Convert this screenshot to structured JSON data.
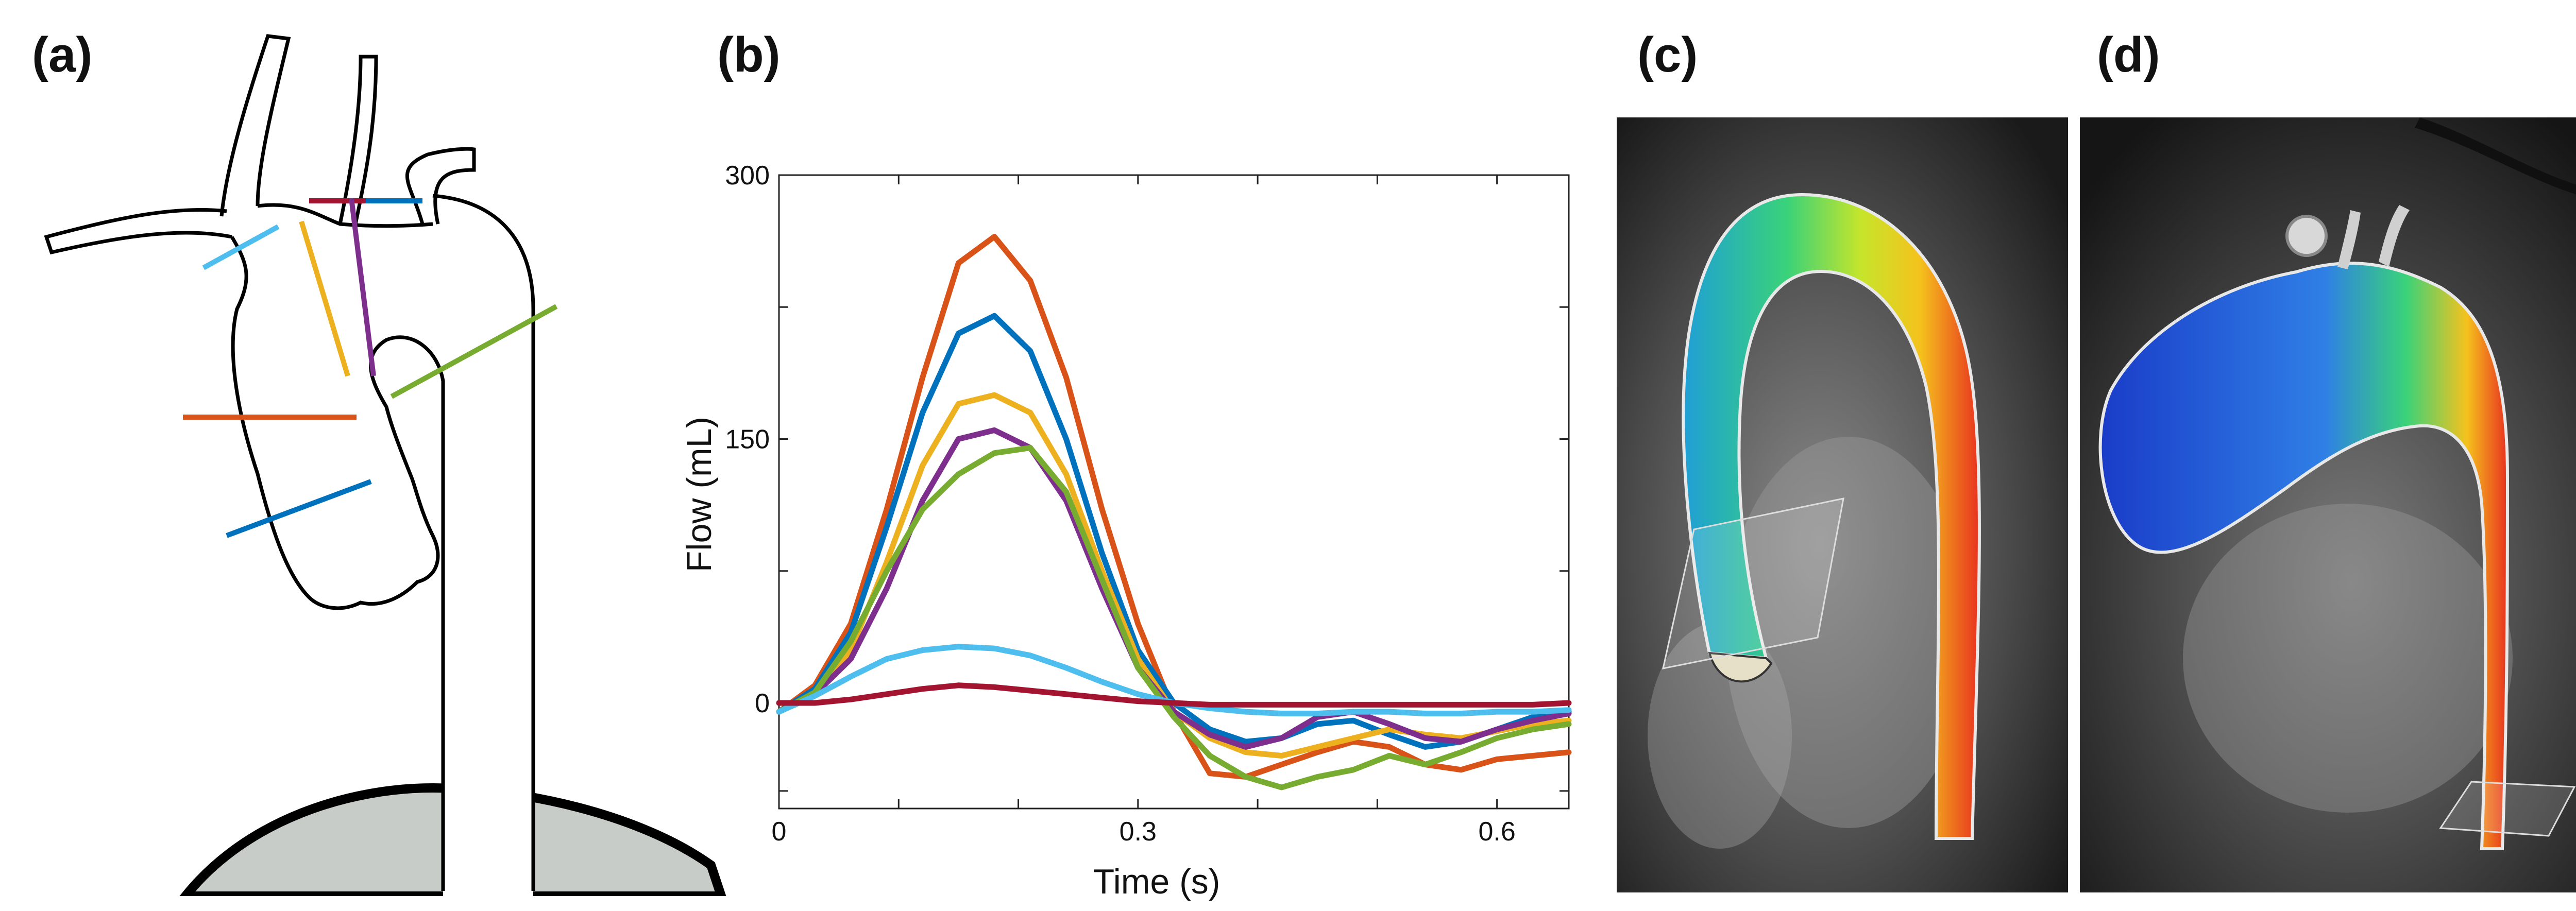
{
  "panels": {
    "a": {
      "label": "(a)"
    },
    "b": {
      "label": "(b)"
    },
    "c": {
      "label": "(c)"
    },
    "d": {
      "label": "(d)"
    }
  },
  "colors": {
    "orange": "#d95319",
    "blue": "#0072bd",
    "yellow": "#edb120",
    "purple": "#7e2f8e",
    "green": "#77ac30",
    "lightblue": "#4dbeee",
    "darkred": "#a2142f"
  },
  "chart_data": {
    "type": "line",
    "title": "",
    "xlabel": "Time (s)",
    "ylabel": "Flow (mL)",
    "xlim": [
      0,
      0.66
    ],
    "ylim": [
      -60,
      300
    ],
    "xticks": [
      0,
      0.3,
      0.6
    ],
    "xtick_labels": [
      "0",
      "0.3",
      "0.6"
    ],
    "yticks": [
      0,
      150,
      300
    ],
    "ytick_labels": [
      "0",
      "150",
      "300"
    ],
    "grid": false,
    "series": [
      {
        "color": "orange",
        "x": [
          0,
          0.03,
          0.06,
          0.09,
          0.12,
          0.15,
          0.18,
          0.21,
          0.24,
          0.27,
          0.3,
          0.33,
          0.36,
          0.39,
          0.42,
          0.45,
          0.48,
          0.51,
          0.54,
          0.57,
          0.6,
          0.63,
          0.66
        ],
        "y": [
          -5,
          10,
          45,
          110,
          185,
          250,
          265,
          240,
          185,
          110,
          45,
          -5,
          -40,
          -42,
          -35,
          -28,
          -22,
          -25,
          -35,
          -38,
          -32,
          -30,
          -28
        ]
      },
      {
        "color": "blue",
        "x": [
          0,
          0.03,
          0.06,
          0.09,
          0.12,
          0.15,
          0.18,
          0.21,
          0.24,
          0.27,
          0.3,
          0.33,
          0.36,
          0.39,
          0.42,
          0.45,
          0.48,
          0.51,
          0.54,
          0.57,
          0.6,
          0.63,
          0.66
        ],
        "y": [
          -5,
          8,
          40,
          100,
          165,
          210,
          220,
          200,
          150,
          85,
          30,
          0,
          -15,
          -22,
          -20,
          -12,
          -10,
          -18,
          -25,
          -22,
          -15,
          -8,
          -5
        ]
      },
      {
        "color": "yellow",
        "x": [
          0,
          0.03,
          0.06,
          0.09,
          0.12,
          0.15,
          0.18,
          0.21,
          0.24,
          0.27,
          0.3,
          0.33,
          0.36,
          0.39,
          0.42,
          0.45,
          0.48,
          0.51,
          0.54,
          0.57,
          0.6,
          0.63,
          0.66
        ],
        "y": [
          -5,
          5,
          30,
          80,
          135,
          170,
          175,
          165,
          130,
          75,
          25,
          -5,
          -20,
          -28,
          -30,
          -25,
          -20,
          -15,
          -18,
          -20,
          -16,
          -12,
          -10
        ]
      },
      {
        "color": "purple",
        "x": [
          0,
          0.03,
          0.06,
          0.09,
          0.12,
          0.15,
          0.18,
          0.21,
          0.24,
          0.27,
          0.3,
          0.33,
          0.36,
          0.39,
          0.42,
          0.45,
          0.48,
          0.51,
          0.54,
          0.57,
          0.6,
          0.63,
          0.66
        ],
        "y": [
          -5,
          5,
          25,
          65,
          115,
          150,
          155,
          145,
          115,
          65,
          20,
          -5,
          -18,
          -25,
          -20,
          -8,
          -5,
          -12,
          -20,
          -22,
          -15,
          -10,
          -6
        ]
      },
      {
        "color": "green",
        "x": [
          0,
          0.03,
          0.06,
          0.09,
          0.12,
          0.15,
          0.18,
          0.21,
          0.24,
          0.27,
          0.3,
          0.33,
          0.36,
          0.39,
          0.42,
          0.45,
          0.48,
          0.51,
          0.54,
          0.57,
          0.6,
          0.63,
          0.66
        ],
        "y": [
          -5,
          6,
          35,
          75,
          110,
          130,
          142,
          145,
          120,
          70,
          20,
          -8,
          -30,
          -42,
          -48,
          -42,
          -38,
          -30,
          -35,
          -28,
          -20,
          -15,
          -12
        ]
      },
      {
        "color": "lightblue",
        "x": [
          0,
          0.03,
          0.06,
          0.09,
          0.12,
          0.15,
          0.18,
          0.21,
          0.24,
          0.27,
          0.3,
          0.33,
          0.36,
          0.39,
          0.42,
          0.45,
          0.48,
          0.51,
          0.54,
          0.57,
          0.6,
          0.63,
          0.66
        ],
        "y": [
          -5,
          4,
          15,
          25,
          30,
          32,
          31,
          27,
          20,
          12,
          5,
          0,
          -3,
          -5,
          -6,
          -6,
          -5,
          -5,
          -6,
          -6,
          -5,
          -5,
          -4
        ]
      },
      {
        "color": "darkred",
        "x": [
          0,
          0.03,
          0.06,
          0.09,
          0.12,
          0.15,
          0.18,
          0.21,
          0.24,
          0.27,
          0.3,
          0.33,
          0.36,
          0.39,
          0.42,
          0.45,
          0.48,
          0.51,
          0.54,
          0.57,
          0.6,
          0.63,
          0.66
        ],
        "y": [
          0,
          0,
          2,
          5,
          8,
          10,
          9,
          7,
          5,
          3,
          1,
          0,
          -1,
          -1,
          -1,
          -1,
          -1,
          -1,
          -1,
          -1,
          -1,
          -1,
          0
        ]
      }
    ]
  }
}
